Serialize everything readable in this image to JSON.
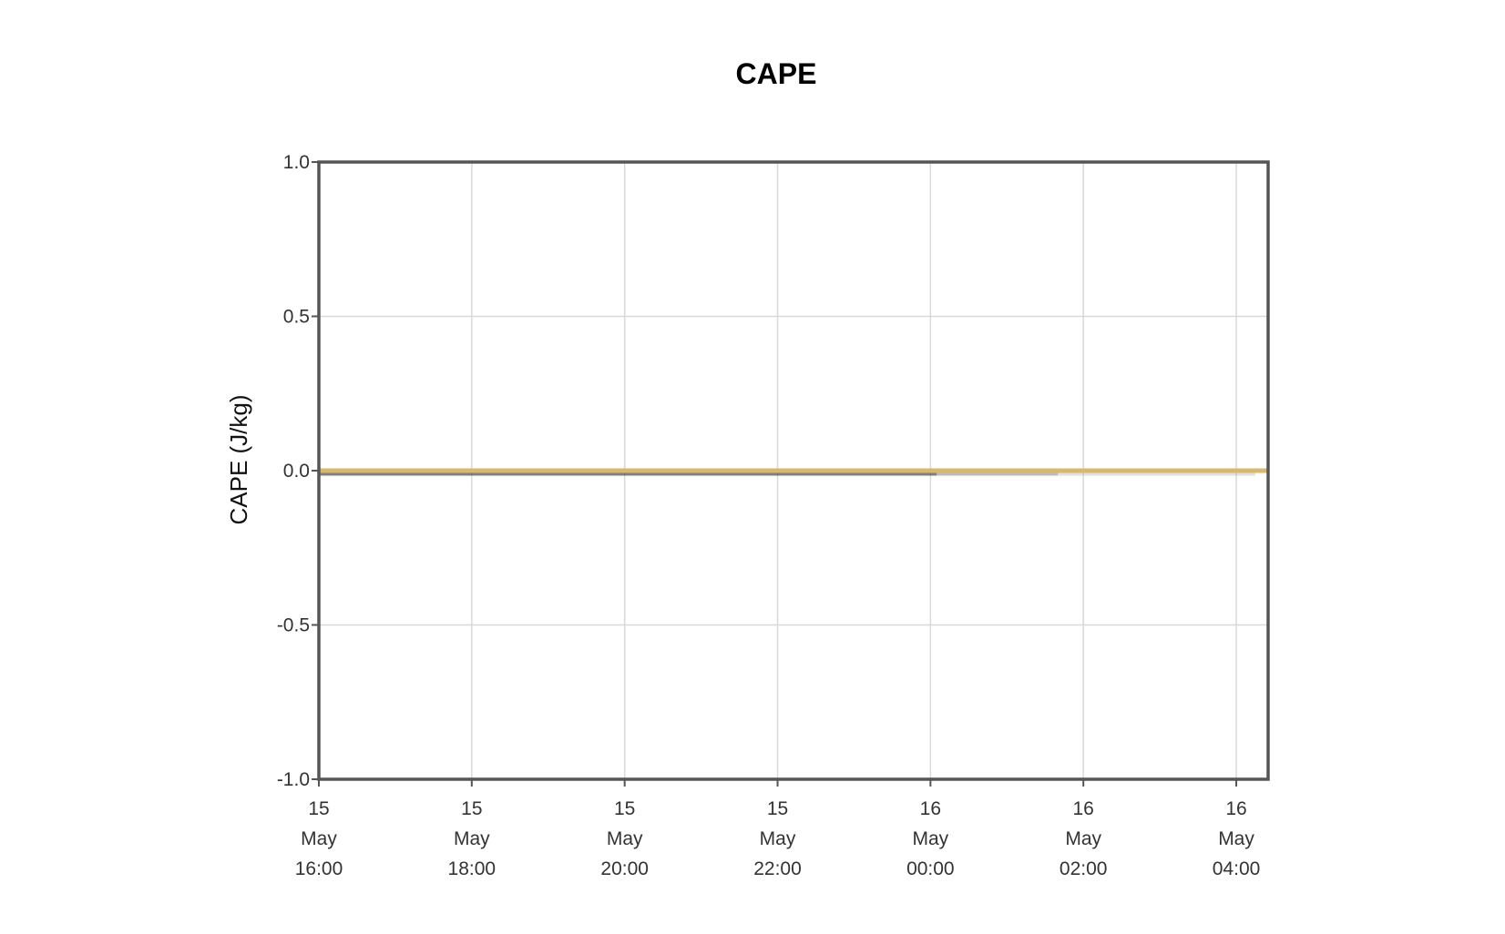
{
  "chart_data": {
    "type": "line",
    "title": "CAPE",
    "xlabel": "",
    "ylabel": "CAPE (J/kg)",
    "ylim": [
      -1.0,
      1.0
    ],
    "yticks": [
      "1.0",
      "0.5",
      "0.0",
      "-0.5",
      "-1.0"
    ],
    "ytick_values": [
      1.0,
      0.5,
      0.0,
      -0.5,
      -1.0
    ],
    "xlim": [
      "2024-05-15T16:00",
      "2024-05-16T04:25"
    ],
    "xticks": [
      {
        "value": "2024-05-15T16:00",
        "lines": [
          "15",
          "May",
          "16:00"
        ]
      },
      {
        "value": "2024-05-15T18:00",
        "lines": [
          "15",
          "May",
          "18:00"
        ]
      },
      {
        "value": "2024-05-15T20:00",
        "lines": [
          "15",
          "May",
          "20:00"
        ]
      },
      {
        "value": "2024-05-15T22:00",
        "lines": [
          "15",
          "May",
          "22:00"
        ]
      },
      {
        "value": "2024-05-16T00:00",
        "lines": [
          "16",
          "May",
          "00:00"
        ]
      },
      {
        "value": "2024-05-16T02:00",
        "lines": [
          "16",
          "May",
          "02:00"
        ]
      },
      {
        "value": "2024-05-16T04:00",
        "lines": [
          "16",
          "May",
          "04:00"
        ]
      }
    ],
    "grid": true,
    "series": [
      {
        "color": "#d9b86a",
        "points": [
          {
            "x": "2024-05-15T16:00",
            "y": 0.0
          },
          {
            "x": "2024-05-16T04:25",
            "y": 0.0
          }
        ]
      },
      {
        "color": "#555555",
        "opacity": 0.75,
        "points": [
          {
            "x": "2024-05-15T16:00",
            "y": 0.0
          },
          {
            "x": "2024-05-16T00:05",
            "y": 0.0
          }
        ]
      },
      {
        "color": "#555555",
        "opacity": 0.4,
        "points": [
          {
            "x": "2024-05-16T00:05",
            "y": 0.0
          },
          {
            "x": "2024-05-16T01:40",
            "y": 0.0
          }
        ]
      },
      {
        "color": "#888888",
        "opacity": 0.25,
        "points": [
          {
            "x": "2024-05-16T01:40",
            "y": 0.0
          },
          {
            "x": "2024-05-16T04:15",
            "y": 0.0
          }
        ]
      }
    ]
  }
}
